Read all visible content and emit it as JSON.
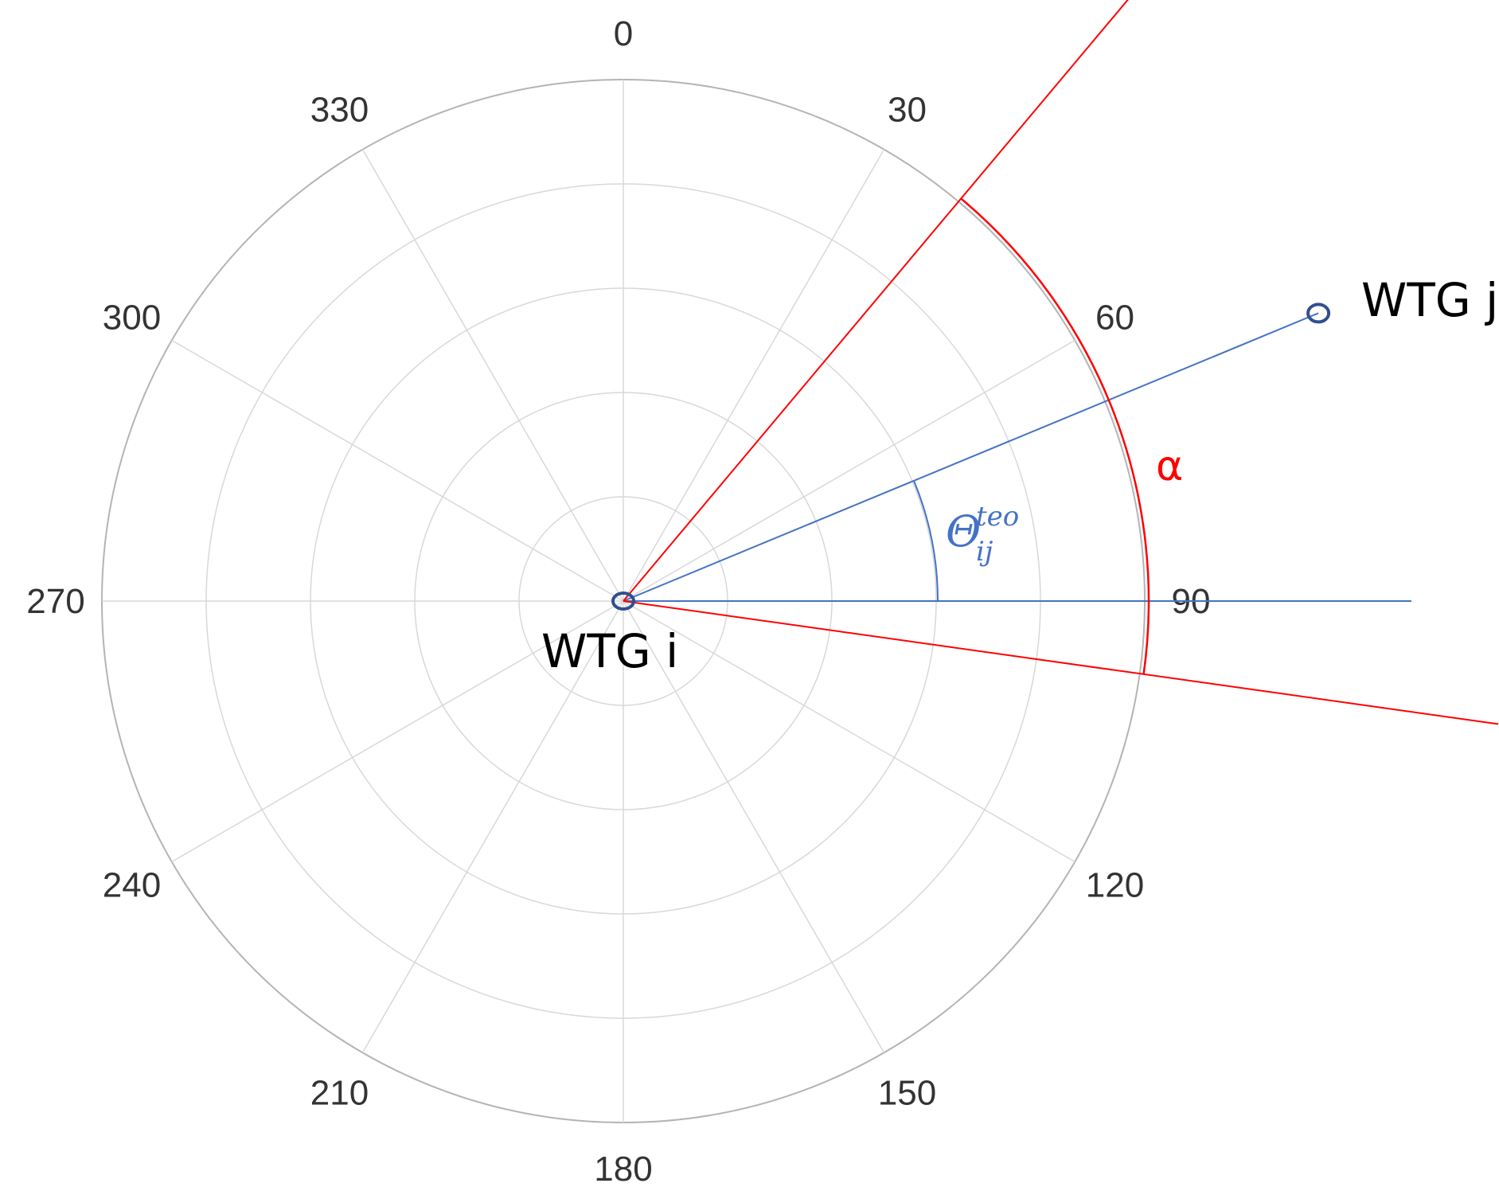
{
  "diagram": {
    "angle_ticks": [
      "0",
      "30",
      "60",
      "90",
      "120",
      "150",
      "180",
      "210",
      "240",
      "270",
      "300",
      "330"
    ],
    "ring_count": 5,
    "node_i": {
      "label": "WTG i"
    },
    "node_j": {
      "label": "WTG j",
      "bearing_deg": 67.5
    },
    "sector": {
      "label": "α",
      "from_deg": 40,
      "to_deg": 98
    },
    "reference_bearing_deg": 90,
    "theta": {
      "symbol": "Θ",
      "superscript": "teo",
      "subscript": "ij"
    },
    "colors": {
      "grid": "#d8d8d8",
      "outer_ring": "#b4b4b4",
      "tick_text": "#333333",
      "sector": "#ff0000",
      "theta": "#4472c4",
      "node": "#2f4f8f"
    }
  }
}
